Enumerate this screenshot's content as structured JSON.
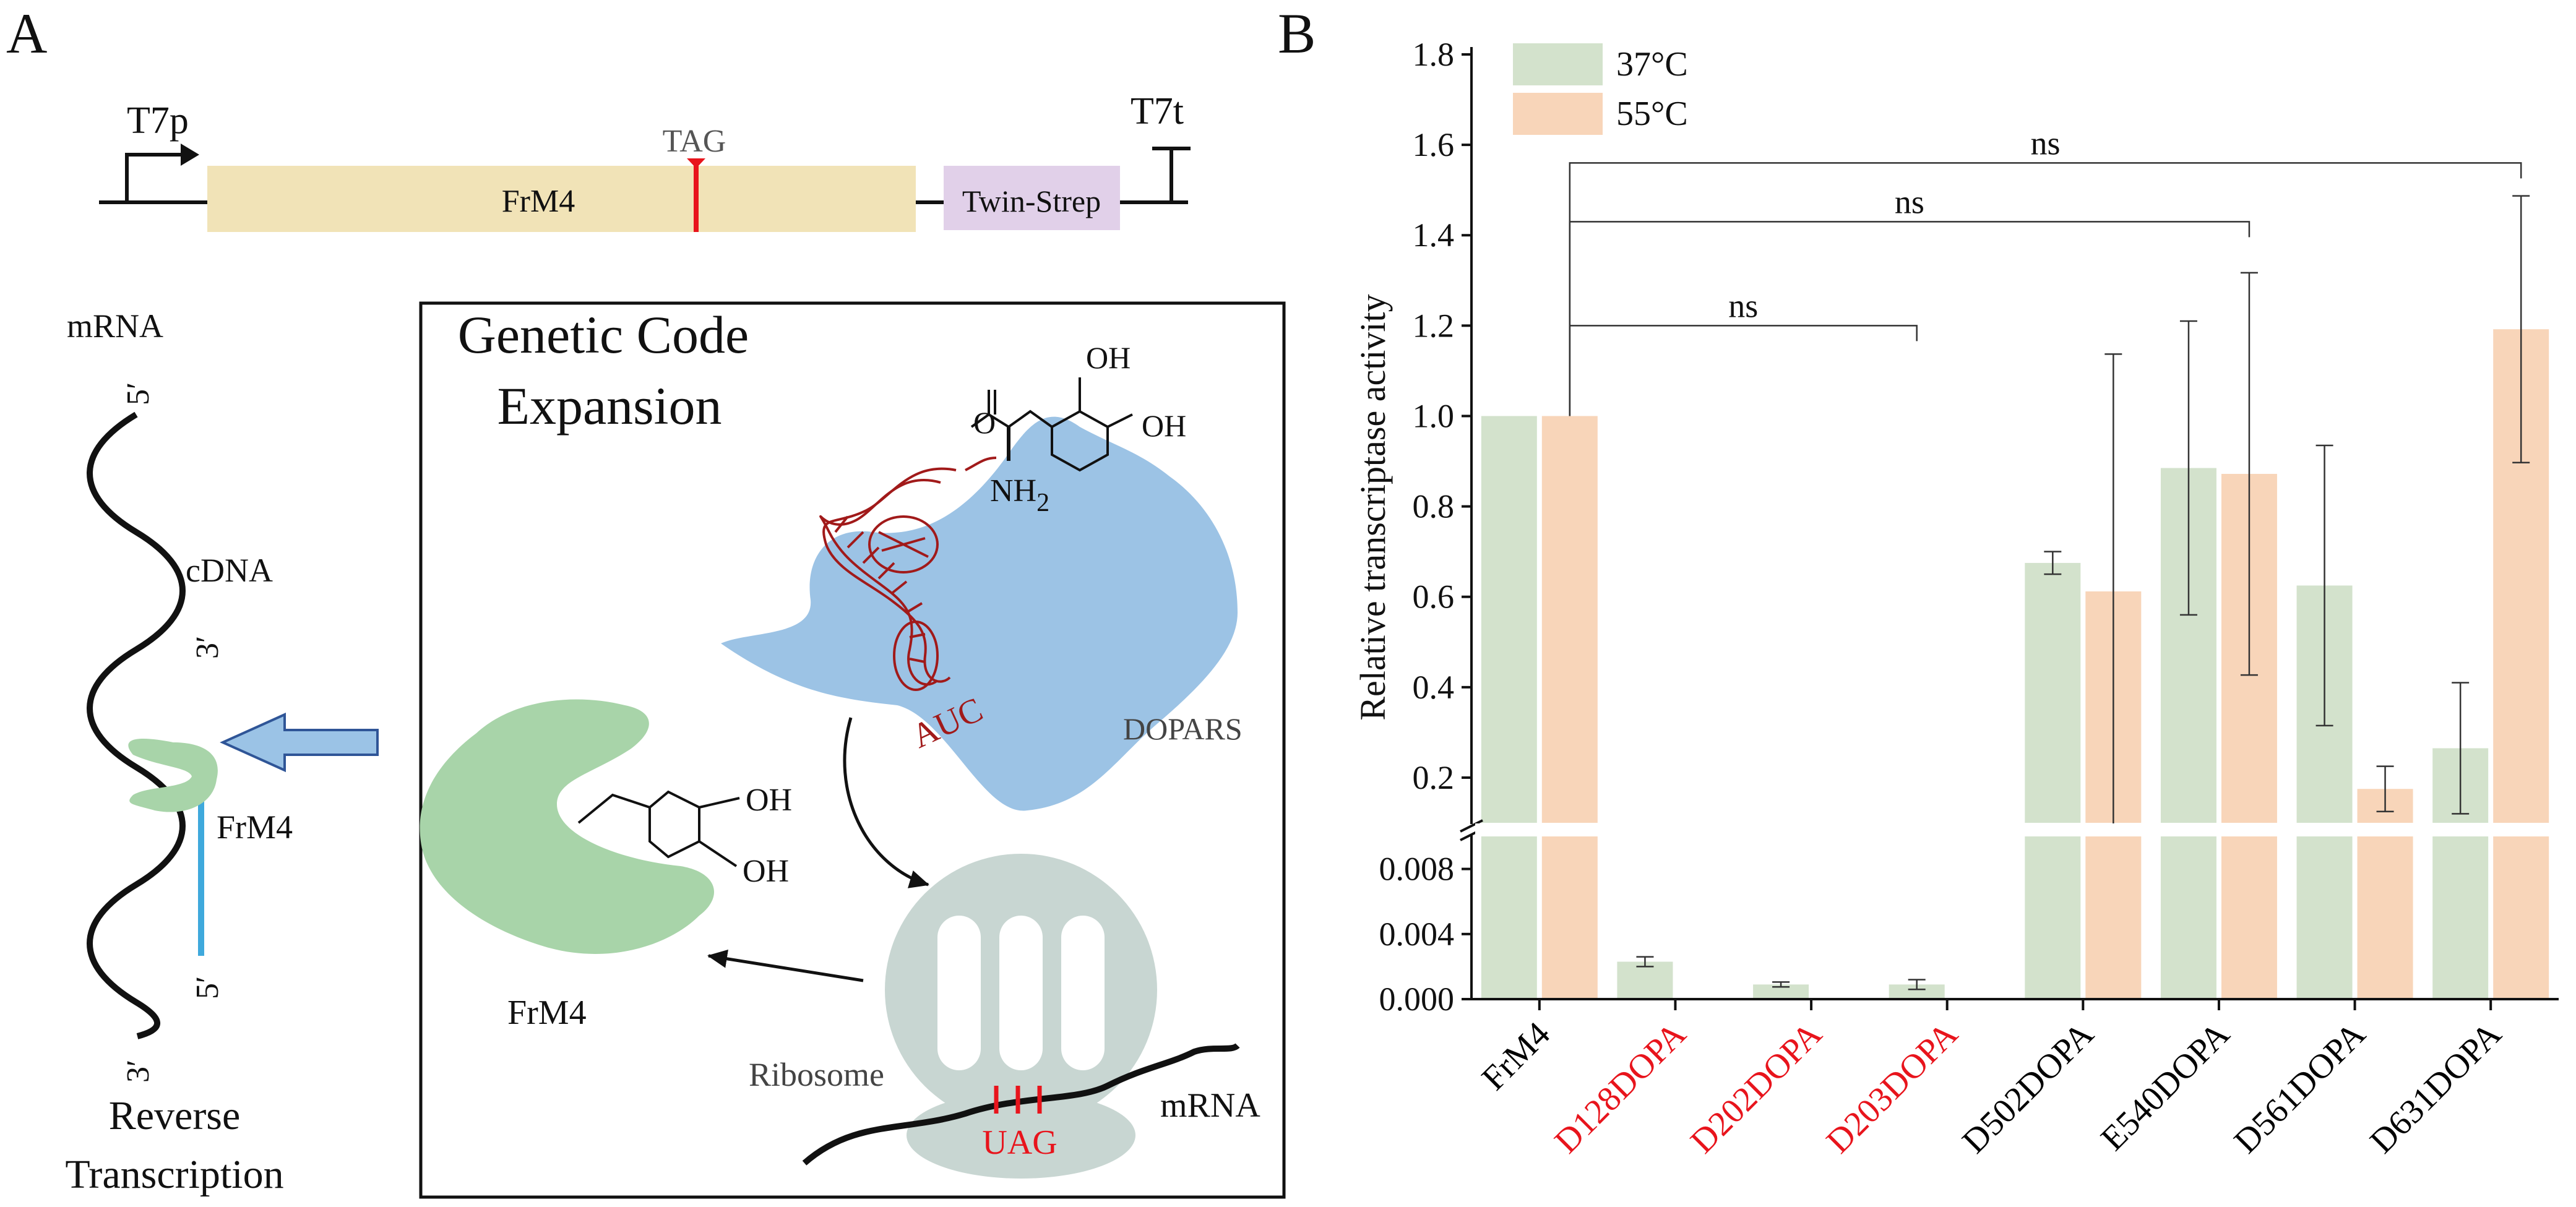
{
  "panel_a": {
    "label": "A",
    "construct": {
      "promoter": "T7p",
      "gene": "FrM4",
      "stop_codon": "TAG",
      "tag": "Twin-Strep",
      "terminator": "T7t"
    },
    "left": {
      "mrna_label": "mRNA",
      "mrna_5prime": "5′",
      "mrna_3prime": "3′",
      "cdna_label": "cDNA",
      "cdna_3prime": "3′",
      "cdna_5prime": "5′",
      "enzyme_label": "FrM4",
      "caption_line1": "Reverse",
      "caption_line2": "Transcription"
    },
    "gce": {
      "title_line1": "Genetic Code",
      "title_line2": "Expansion",
      "oh1": "OH",
      "oh2": "OH",
      "nh2": "NH",
      "nh2_sub": "2",
      "oxygen": "O",
      "anticodon": "AUC",
      "synthetase": "DOPARS",
      "enzyme_oh1": "OH",
      "enzyme_oh2": "OH",
      "enzyme_label": "FrM4",
      "ribosome": "Ribosome",
      "mrna": "mRNA",
      "codon": "UAG"
    }
  },
  "chart_data": {
    "panel_label": "B",
    "type": "bar",
    "ylabel": "Relative transcriptase activity",
    "xlabel": "",
    "categories": [
      "FrM4",
      "D128DOPA",
      "D202DOPA",
      "D203DOPA",
      "D502DOPA",
      "E540DOPA",
      "D561DOPA",
      "D631DOPA"
    ],
    "category_colors": [
      "#000000",
      "#e8141c",
      "#e8141c",
      "#e8141c",
      "#000000",
      "#000000",
      "#000000",
      "#000000"
    ],
    "broken_axis": {
      "lower_range": [
        0,
        0.01
      ],
      "lower_ticks": [
        0.0,
        0.004,
        0.008
      ],
      "lower_tick_labels": [
        "0.000",
        "0.004",
        "0.008"
      ],
      "upper_range": [
        0.1,
        1.8
      ],
      "upper_ticks": [
        0.2,
        0.4,
        0.6,
        0.8,
        1.0,
        1.2,
        1.4,
        1.6,
        1.8
      ],
      "upper_tick_labels": [
        "0.2",
        "0.4",
        "0.6",
        "0.8",
        "1.0",
        "1.2",
        "1.4",
        "1.6",
        "1.8"
      ]
    },
    "series": [
      {
        "name": "37°C",
        "color": "#d3e2cc",
        "values": [
          1.0,
          0.0023,
          0.0009,
          0.0009,
          0.675,
          0.885,
          0.625,
          0.265
        ],
        "errors": [
          0,
          0.0003,
          0.00015,
          0.0003,
          0.025,
          0.325,
          0.31,
          0.145
        ]
      },
      {
        "name": "55°C",
        "color": "#f8d5b9",
        "values": [
          1.0,
          null,
          null,
          null,
          0.612,
          0.872,
          0.175,
          1.192
        ],
        "errors": [
          0,
          null,
          null,
          null,
          0.525,
          0.445,
          0.05,
          0.295
        ]
      }
    ],
    "significance": [
      {
        "from": "FrM4",
        "to": "D203DOPA",
        "label": "ns",
        "y": 1.2
      },
      {
        "from": "FrM4",
        "to": "E540DOPA",
        "label": "ns",
        "y": 1.43
      },
      {
        "from": "FrM4",
        "to": "D631DOPA",
        "label": "ns",
        "y": 1.56
      }
    ],
    "legend_position": "top-left"
  }
}
